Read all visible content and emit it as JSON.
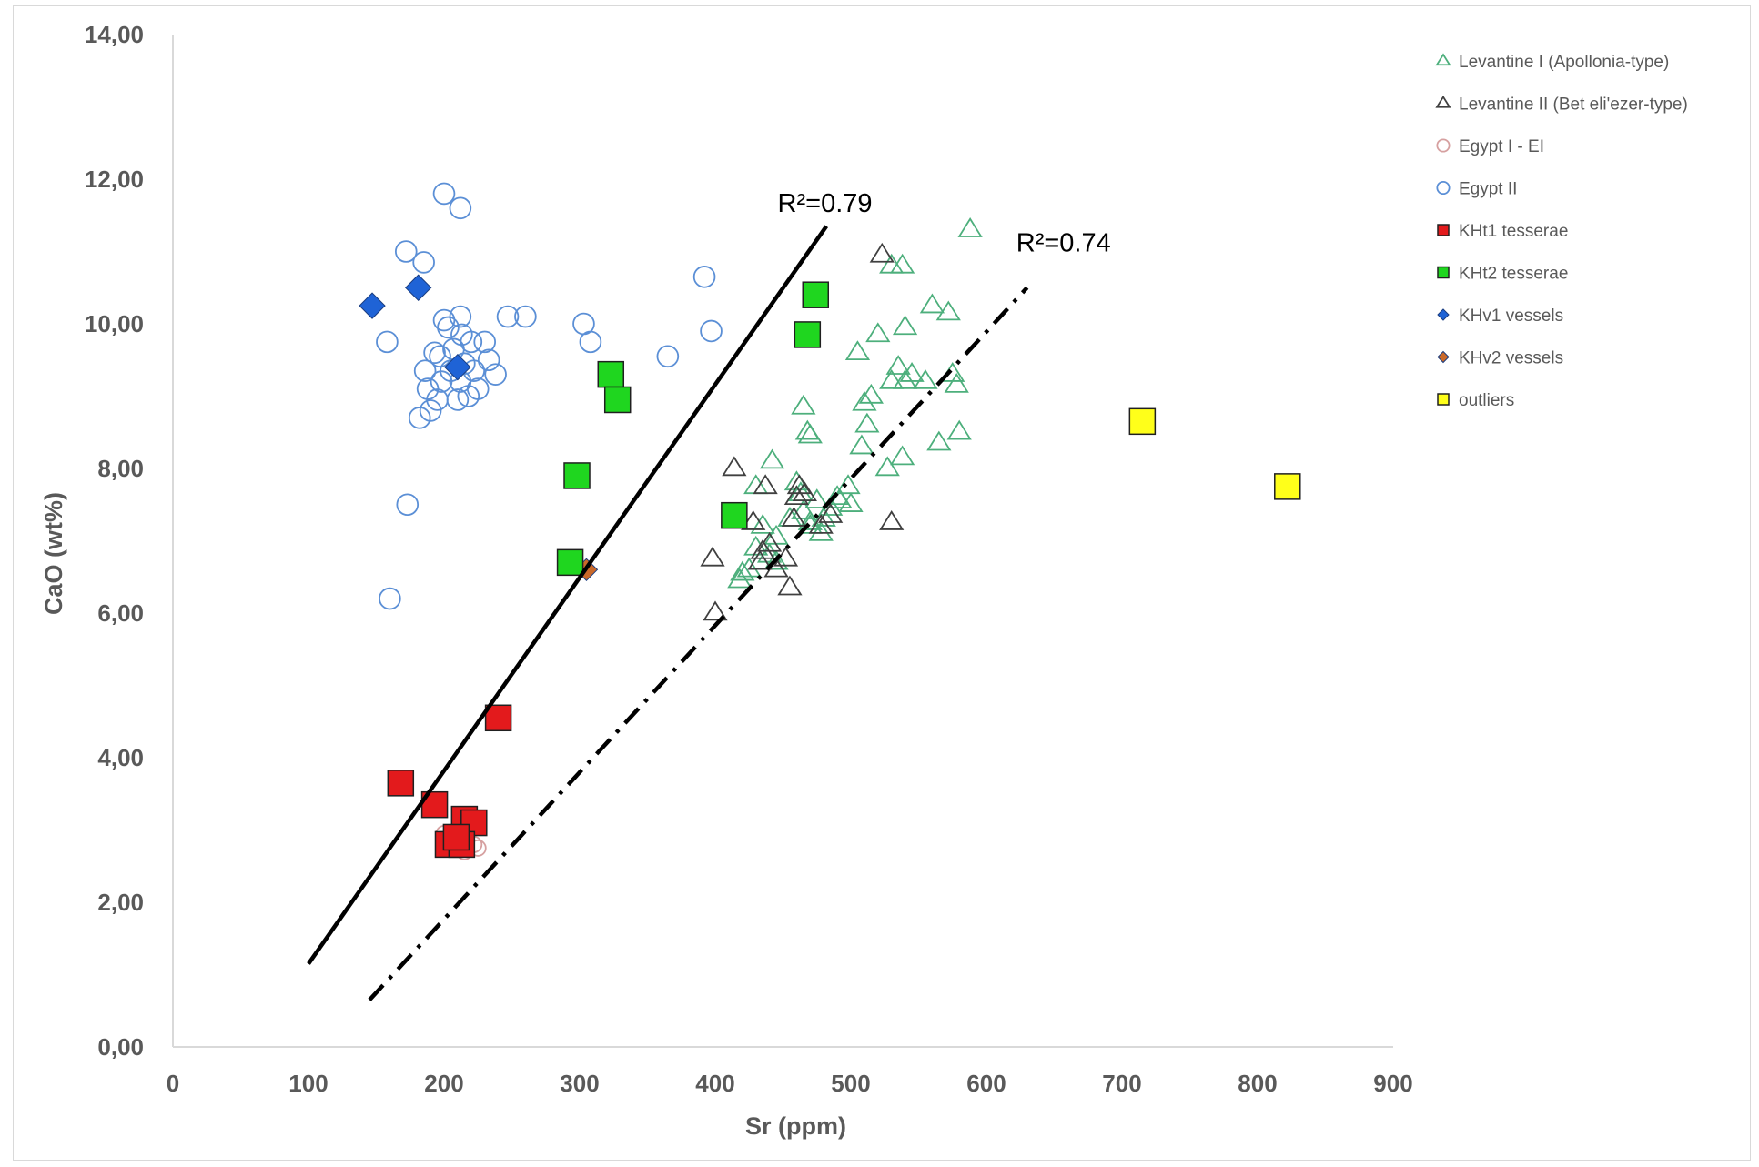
{
  "chart_data": {
    "type": "scatter",
    "xlabel": "Sr (ppm)",
    "ylabel": "CaO (wt%)",
    "xlim": [
      0,
      900
    ],
    "ylim": [
      0,
      14
    ],
    "x_ticks": [
      "0",
      "100",
      "200",
      "300",
      "400",
      "500",
      "600",
      "700",
      "800",
      "900"
    ],
    "y_ticks": [
      "0,00",
      "2,00",
      "4,00",
      "6,00",
      "8,00",
      "10,00",
      "12,00",
      "14,00"
    ],
    "grid": false,
    "legend_position": "right",
    "series": [
      {
        "name": "Levantine I (Apollonia-type)",
        "marker": "triangle-open",
        "color": "#4daf7c",
        "size": "medium",
        "points": [
          [
            530,
            10.8
          ],
          [
            538,
            10.8
          ],
          [
            588,
            11.3
          ],
          [
            520,
            9.85
          ],
          [
            540,
            9.95
          ],
          [
            505,
            9.6
          ],
          [
            560,
            10.25
          ],
          [
            572,
            10.15
          ],
          [
            535,
            9.4
          ],
          [
            545,
            9.3
          ],
          [
            555,
            9.2
          ],
          [
            575,
            9.3
          ],
          [
            578,
            9.15
          ],
          [
            530,
            9.2
          ],
          [
            540,
            9.2
          ],
          [
            510,
            8.9
          ],
          [
            515,
            9.0
          ],
          [
            465,
            8.85
          ],
          [
            512,
            8.6
          ],
          [
            508,
            8.3
          ],
          [
            468,
            8.5
          ],
          [
            470,
            8.45
          ],
          [
            565,
            8.35
          ],
          [
            580,
            8.5
          ],
          [
            538,
            8.15
          ],
          [
            527,
            8.0
          ],
          [
            442,
            8.1
          ],
          [
            430,
            7.75
          ],
          [
            460,
            7.8
          ],
          [
            475,
            7.55
          ],
          [
            490,
            7.6
          ],
          [
            498,
            7.75
          ],
          [
            500,
            7.5
          ],
          [
            465,
            7.4
          ],
          [
            480,
            7.3
          ],
          [
            470,
            7.25
          ],
          [
            485,
            7.45
          ],
          [
            492,
            7.55
          ],
          [
            455,
            7.3
          ],
          [
            445,
            7.05
          ],
          [
            478,
            7.1
          ],
          [
            430,
            6.9
          ],
          [
            440,
            6.8
          ],
          [
            445,
            6.7
          ],
          [
            420,
            6.55
          ],
          [
            425,
            6.6
          ],
          [
            418,
            6.45
          ],
          [
            435,
            7.2
          ],
          [
            463,
            7.65
          ],
          [
            470,
            7.2
          ]
        ]
      },
      {
        "name": "Levantine II (Bet eli'ezer-type)",
        "marker": "triangle-open",
        "color": "#404040",
        "size": "medium",
        "points": [
          [
            523,
            10.95
          ],
          [
            414,
            8.0
          ],
          [
            437,
            7.75
          ],
          [
            462,
            7.75
          ],
          [
            466,
            7.65
          ],
          [
            460,
            7.6
          ],
          [
            530,
            7.25
          ],
          [
            428,
            7.25
          ],
          [
            458,
            7.3
          ],
          [
            435,
            6.85
          ],
          [
            433,
            6.7
          ],
          [
            452,
            6.75
          ],
          [
            445,
            6.6
          ],
          [
            398,
            6.75
          ],
          [
            455,
            6.35
          ],
          [
            400,
            6.0
          ],
          [
            478,
            7.2
          ],
          [
            485,
            7.35
          ],
          [
            440,
            6.95
          ]
        ]
      },
      {
        "name": "Egypt I - EI",
        "marker": "circle-open",
        "color": "#d6a0a0",
        "size": "small",
        "points": [
          [
            205,
            2.75
          ],
          [
            215,
            2.7
          ],
          [
            225,
            2.75
          ],
          [
            210,
            2.9
          ],
          [
            200,
            2.95
          ],
          [
            218,
            3.0
          ],
          [
            222,
            2.8
          ],
          [
            212,
            2.85
          ]
        ]
      },
      {
        "name": "Egypt II",
        "marker": "circle-open",
        "color": "#5b8fd6",
        "size": "medium",
        "points": [
          [
            200,
            11.8
          ],
          [
            212,
            11.6
          ],
          [
            172,
            11.0
          ],
          [
            185,
            10.85
          ],
          [
            158,
            9.75
          ],
          [
            247,
            10.1
          ],
          [
            260,
            10.1
          ],
          [
            200,
            10.05
          ],
          [
            212,
            10.1
          ],
          [
            203,
            9.95
          ],
          [
            213,
            9.85
          ],
          [
            220,
            9.75
          ],
          [
            207,
            9.65
          ],
          [
            197,
            9.55
          ],
          [
            230,
            9.75
          ],
          [
            215,
            9.45
          ],
          [
            233,
            9.5
          ],
          [
            186,
            9.35
          ],
          [
            205,
            9.35
          ],
          [
            222,
            9.35
          ],
          [
            238,
            9.3
          ],
          [
            198,
            9.2
          ],
          [
            212,
            9.2
          ],
          [
            188,
            9.1
          ],
          [
            218,
            9.0
          ],
          [
            195,
            8.95
          ],
          [
            210,
            8.95
          ],
          [
            190,
            8.8
          ],
          [
            182,
            8.7
          ],
          [
            303,
            10.0
          ],
          [
            308,
            9.75
          ],
          [
            365,
            9.55
          ],
          [
            392,
            10.65
          ],
          [
            397,
            9.9
          ],
          [
            173,
            7.5
          ],
          [
            160,
            6.2
          ],
          [
            225,
            9.1
          ],
          [
            193,
            9.6
          ]
        ]
      },
      {
        "name": "KHt1 tesserae",
        "marker": "square-filled",
        "color": "#e31a1c",
        "size": "large",
        "points": [
          [
            168,
            3.65
          ],
          [
            193,
            3.35
          ],
          [
            240,
            4.55
          ],
          [
            215,
            3.15
          ],
          [
            222,
            3.1
          ],
          [
            203,
            2.8
          ],
          [
            213,
            2.8
          ],
          [
            209,
            2.9
          ]
        ]
      },
      {
        "name": "KHt2 tesserae",
        "marker": "square-filled",
        "color": "#1fd61f",
        "size": "large",
        "points": [
          [
            474,
            10.4
          ],
          [
            468,
            9.85
          ],
          [
            323,
            9.3
          ],
          [
            328,
            8.95
          ],
          [
            298,
            7.9
          ],
          [
            414,
            7.35
          ],
          [
            293,
            6.7
          ]
        ]
      },
      {
        "name": "KHv1 vessels",
        "marker": "diamond-filled",
        "color": "#1f63d6",
        "size": "large",
        "points": [
          [
            147,
            10.25
          ],
          [
            181,
            10.5
          ],
          [
            210,
            9.4
          ]
        ]
      },
      {
        "name": "KHv2 vessels",
        "marker": "diamond-filled",
        "color": "#c9692a",
        "size": "medium",
        "points": [
          [
            305,
            6.6
          ]
        ]
      },
      {
        "name": "outliers",
        "marker": "square-filled",
        "color": "#ffff1a",
        "size": "large",
        "points": [
          [
            715,
            8.65
          ],
          [
            822,
            7.75
          ]
        ]
      }
    ],
    "trendlines": [
      {
        "label": "R²=0.79",
        "style": "solid",
        "from": [
          100,
          1.15
        ],
        "to": [
          482,
          11.35
        ],
        "label_at": [
          446,
          11.55
        ]
      },
      {
        "label": "R²=0.74",
        "style": "dash-dot",
        "from": [
          145,
          0.65
        ],
        "to": [
          630,
          10.5
        ],
        "label_at": [
          622,
          11.0
        ]
      }
    ]
  }
}
